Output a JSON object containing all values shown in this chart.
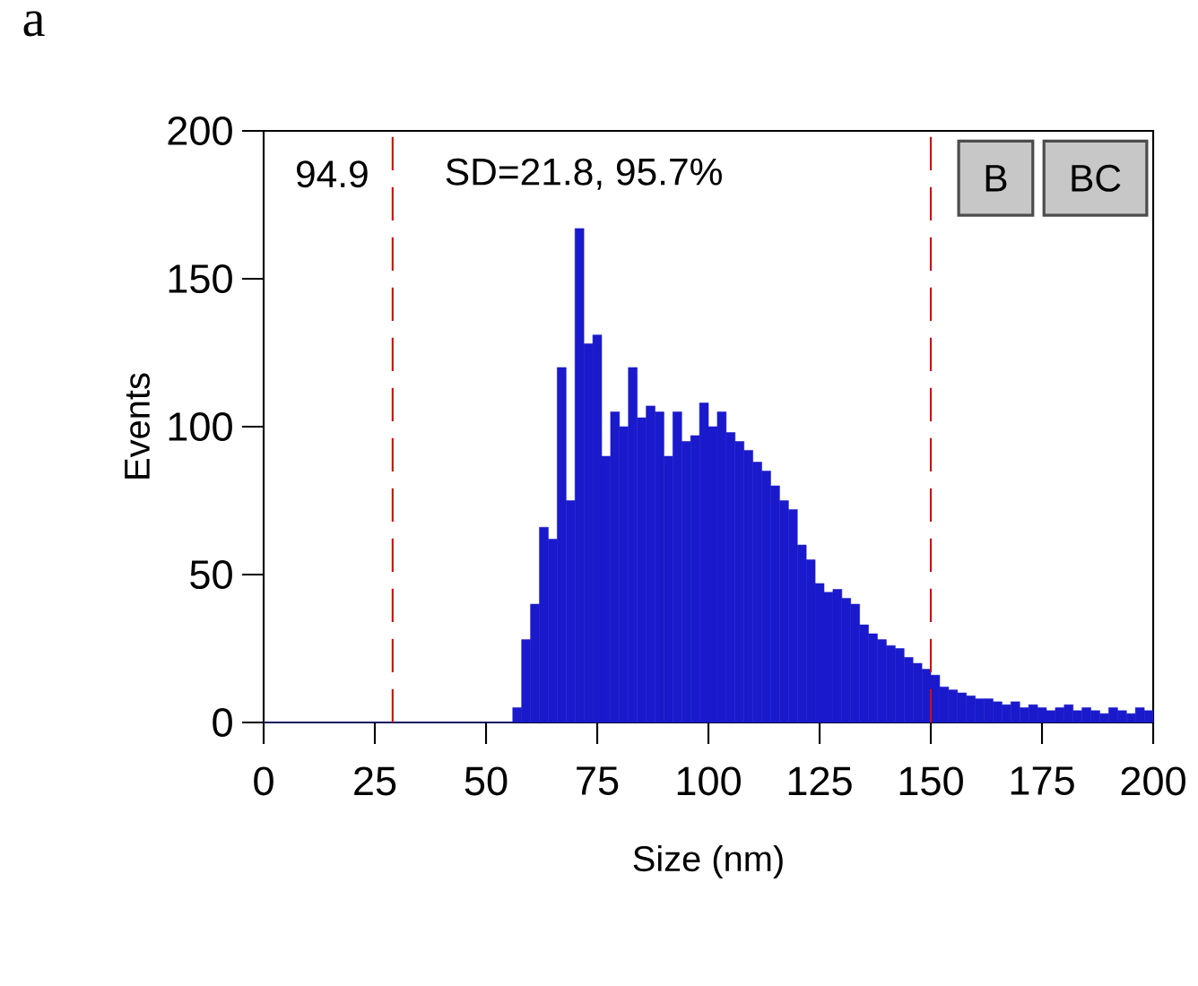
{
  "chart_data": {
    "type": "histogram",
    "xlabel": "Size (nm)",
    "ylabel": "Events",
    "annotations": [
      "a",
      "94.9",
      "SD=21.8,  95.7%",
      "B",
      "BC"
    ],
    "bins": [
      0,
      2,
      4,
      6,
      8,
      10,
      12,
      14,
      16,
      18,
      20,
      22,
      24,
      26,
      28,
      30,
      32,
      34,
      36,
      38,
      40,
      42,
      44,
      46,
      48,
      50,
      52,
      54,
      56,
      58,
      60,
      62,
      64,
      66,
      68,
      70,
      72,
      74,
      76,
      78,
      80,
      82,
      84,
      86,
      88,
      90,
      92,
      94,
      96,
      98,
      100,
      102,
      104,
      106,
      108,
      110,
      112,
      114,
      116,
      118,
      120,
      122,
      124,
      126,
      128,
      130,
      132,
      134,
      136,
      138,
      140,
      142,
      144,
      146,
      148,
      150,
      152,
      154,
      156,
      158,
      160,
      162,
      164,
      166,
      168,
      170,
      172,
      174,
      176,
      178,
      180,
      182,
      184,
      186,
      188,
      190,
      192,
      194,
      196,
      198,
      200
    ],
    "values": [
      0,
      0,
      0,
      0,
      0,
      0,
      0,
      0,
      0,
      0,
      0,
      0,
      0,
      0,
      0,
      0,
      0,
      0,
      0,
      0,
      0,
      0,
      0,
      0,
      0,
      0,
      0,
      0,
      5,
      28,
      40,
      66,
      62,
      120,
      75,
      167,
      128,
      131,
      90,
      105,
      100,
      120,
      103,
      107,
      105,
      90,
      105,
      95,
      97,
      108,
      100,
      105,
      98,
      95,
      92,
      88,
      85,
      80,
      75,
      72,
      60,
      55,
      47,
      44,
      45,
      42,
      40,
      33,
      30,
      28,
      26,
      25,
      22,
      20,
      18,
      16,
      12,
      11,
      10,
      9,
      8,
      8,
      7,
      6,
      7,
      5,
      6,
      5,
      4,
      5,
      6,
      4,
      5,
      4,
      3,
      5,
      4,
      3,
      5,
      4
    ],
    "color": "#1a1acc",
    "xlim": [
      0,
      200
    ],
    "ylim": [
      0,
      200
    ],
    "xticks": [
      0,
      25,
      50,
      75,
      100,
      125,
      150,
      175,
      200
    ],
    "yticks": [
      0,
      50,
      100,
      150,
      200
    ],
    "ref_lines": [
      {
        "axis": "x",
        "value": 29,
        "color": "#cc1010",
        "line_style": "dashed"
      },
      {
        "axis": "x",
        "value": 150,
        "color": "#cc1010",
        "line_style": "dashed"
      }
    ],
    "grid": false
  }
}
